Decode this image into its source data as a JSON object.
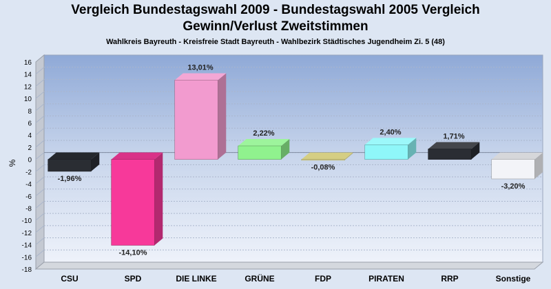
{
  "header": {
    "title_line1": "Vergleich Bundestagswahl 2009 - Bundestagswahl 2005 Vergleich",
    "title_line2": "Gewinn/Verlust Zweitstimmen",
    "subtitle": "Wahlkreis Bayreuth - Kreisfreie Stadt Bayreuth - Wahlbezirk Städtisches Jugendheim Zi. 5 (48)"
  },
  "chart_data": {
    "type": "bar",
    "title": "Vergleich Bundestagswahl 2009 - Bundestagswahl 2005 Vergleich Gewinn/Verlust Zweitstimmen",
    "subtitle": "Wahlkreis Bayreuth - Kreisfreie Stadt Bayreuth - Wahlbezirk Städtisches Jugendheim Zi. 5 (48)",
    "xlabel": "",
    "ylabel": "%",
    "ylim": [
      -18,
      16
    ],
    "yticks": [
      16,
      14,
      12,
      10,
      8,
      6,
      4,
      2,
      0,
      -2,
      -4,
      -6,
      -8,
      -10,
      -12,
      -14,
      -16,
      -18
    ],
    "grid": true,
    "legend": "none",
    "categories": [
      "CSU",
      "SPD",
      "DIE LINKE",
      "GRÜNE",
      "FDP",
      "PIRATEN",
      "RRP",
      "Sonstige"
    ],
    "values": [
      -1.96,
      -14.1,
      13.01,
      2.22,
      -0.08,
      2.4,
      1.71,
      -3.2
    ],
    "value_labels": [
      "-1,96%",
      "-14,10%",
      "13,01%",
      "2,22%",
      "-0,08%",
      "2,40%",
      "1,71%",
      "-3,20%"
    ],
    "colors": [
      "#2a2d33",
      "#f7399a",
      "#f29bcf",
      "#90f28e",
      "#f2ea95",
      "#8ff7f9",
      "#2a2d33",
      "#f3f4f8"
    ]
  }
}
